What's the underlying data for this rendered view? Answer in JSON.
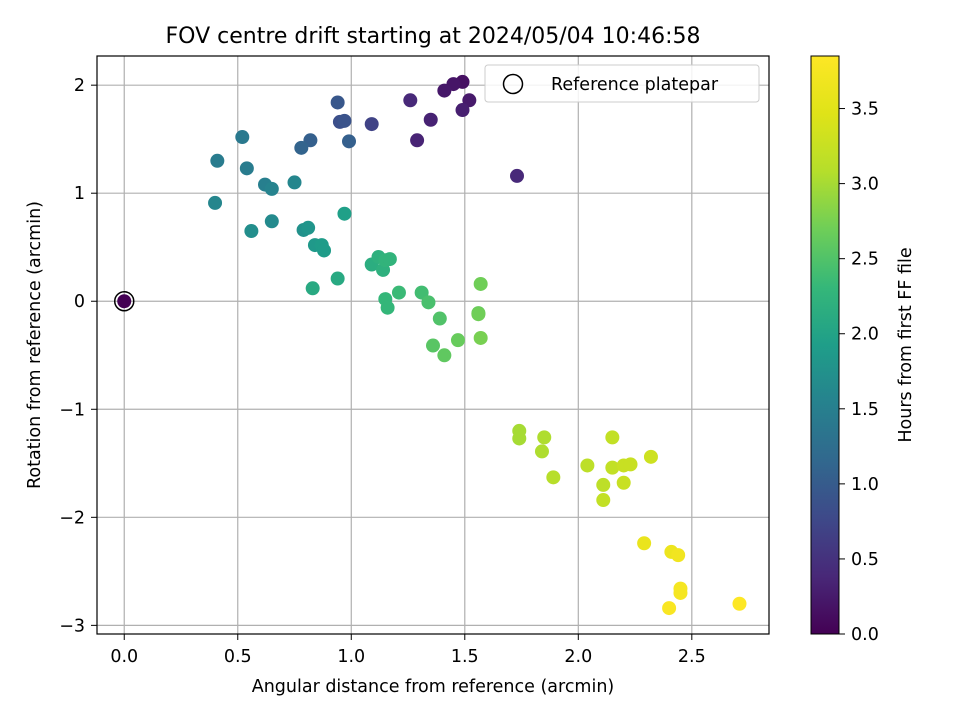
{
  "chart_data": {
    "type": "scatter",
    "title": "FOV centre drift starting at 2024/05/04 10:46:58",
    "xlabel": "Angular distance from reference (arcmin)",
    "ylabel": "Rotation from reference (arcmin)",
    "xlim": [
      -0.12,
      2.84
    ],
    "ylim": [
      -3.08,
      2.27
    ],
    "xticks": [
      0.0,
      0.5,
      1.0,
      1.5,
      2.0,
      2.5
    ],
    "xtick_labels": [
      "0.0",
      "0.5",
      "1.0",
      "1.5",
      "2.0",
      "2.5"
    ],
    "yticks": [
      -3,
      -2,
      -1,
      0,
      1,
      2
    ],
    "ytick_labels": [
      "−3",
      "−2",
      "−1",
      "0",
      "1",
      "2"
    ],
    "grid": true,
    "colorbar": {
      "label": "Hours from first FF file",
      "colormap": "viridis",
      "range": [
        0.0,
        3.85
      ],
      "ticks": [
        0.0,
        0.5,
        1.0,
        1.5,
        2.0,
        2.5,
        3.0,
        3.5
      ],
      "tick_labels": [
        "0.0",
        "0.5",
        "1.0",
        "1.5",
        "2.0",
        "2.5",
        "3.0",
        "3.5"
      ]
    },
    "legend": {
      "label": "Reference platepar",
      "placement": "upper right"
    },
    "reference_point": {
      "x": 0.0,
      "y": 0.0,
      "value": 0.0
    },
    "points": [
      {
        "x": 1.49,
        "y": 2.03,
        "v": 0.15
      },
      {
        "x": 1.45,
        "y": 2.01,
        "v": 0.2
      },
      {
        "x": 1.41,
        "y": 1.95,
        "v": 0.22
      },
      {
        "x": 1.52,
        "y": 1.86,
        "v": 0.25
      },
      {
        "x": 1.49,
        "y": 1.77,
        "v": 0.3
      },
      {
        "x": 1.35,
        "y": 1.68,
        "v": 0.33
      },
      {
        "x": 1.29,
        "y": 1.49,
        "v": 0.35
      },
      {
        "x": 1.26,
        "y": 1.86,
        "v": 0.4
      },
      {
        "x": 1.73,
        "y": 1.16,
        "v": 0.4
      },
      {
        "x": 1.09,
        "y": 1.64,
        "v": 0.7
      },
      {
        "x": 0.95,
        "y": 1.66,
        "v": 0.85
      },
      {
        "x": 0.97,
        "y": 1.67,
        "v": 0.9
      },
      {
        "x": 0.94,
        "y": 1.84,
        "v": 0.95
      },
      {
        "x": 0.99,
        "y": 1.48,
        "v": 1.05
      },
      {
        "x": 0.82,
        "y": 1.49,
        "v": 1.05
      },
      {
        "x": 0.78,
        "y": 1.42,
        "v": 1.1
      },
      {
        "x": 0.52,
        "y": 1.52,
        "v": 1.4
      },
      {
        "x": 0.41,
        "y": 1.3,
        "v": 1.45
      },
      {
        "x": 0.54,
        "y": 1.23,
        "v": 1.45
      },
      {
        "x": 0.62,
        "y": 1.08,
        "v": 1.5
      },
      {
        "x": 0.65,
        "y": 1.04,
        "v": 1.55
      },
      {
        "x": 0.75,
        "y": 1.1,
        "v": 1.6
      },
      {
        "x": 0.4,
        "y": 0.91,
        "v": 1.6
      },
      {
        "x": 0.65,
        "y": 0.74,
        "v": 1.65
      },
      {
        "x": 0.56,
        "y": 0.65,
        "v": 1.7
      },
      {
        "x": 0.79,
        "y": 0.66,
        "v": 1.75
      },
      {
        "x": 0.81,
        "y": 0.68,
        "v": 1.8
      },
      {
        "x": 0.84,
        "y": 0.52,
        "v": 1.85
      },
      {
        "x": 0.87,
        "y": 0.52,
        "v": 1.9
      },
      {
        "x": 0.88,
        "y": 0.47,
        "v": 1.9
      },
      {
        "x": 0.97,
        "y": 0.81,
        "v": 1.95
      },
      {
        "x": 0.94,
        "y": 0.21,
        "v": 2.1
      },
      {
        "x": 0.83,
        "y": 0.12,
        "v": 2.1
      },
      {
        "x": 1.09,
        "y": 0.34,
        "v": 2.15
      },
      {
        "x": 1.12,
        "y": 0.41,
        "v": 2.2
      },
      {
        "x": 1.14,
        "y": 0.29,
        "v": 2.2
      },
      {
        "x": 1.15,
        "y": 0.38,
        "v": 2.25
      },
      {
        "x": 1.17,
        "y": 0.39,
        "v": 2.25
      },
      {
        "x": 1.15,
        "y": 0.02,
        "v": 2.3
      },
      {
        "x": 1.16,
        "y": -0.06,
        "v": 2.3
      },
      {
        "x": 1.21,
        "y": 0.08,
        "v": 2.35
      },
      {
        "x": 1.31,
        "y": 0.08,
        "v": 2.4
      },
      {
        "x": 1.34,
        "y": -0.01,
        "v": 2.45
      },
      {
        "x": 1.39,
        "y": -0.16,
        "v": 2.5
      },
      {
        "x": 1.36,
        "y": -0.41,
        "v": 2.55
      },
      {
        "x": 1.41,
        "y": -0.5,
        "v": 2.6
      },
      {
        "x": 1.47,
        "y": -0.36,
        "v": 2.65
      },
      {
        "x": 1.56,
        "y": -0.11,
        "v": 2.65
      },
      {
        "x": 1.56,
        "y": -0.12,
        "v": 2.7
      },
      {
        "x": 1.57,
        "y": 0.16,
        "v": 2.7
      },
      {
        "x": 1.57,
        "y": -0.34,
        "v": 2.75
      },
      {
        "x": 1.74,
        "y": -1.2,
        "v": 3.0
      },
      {
        "x": 1.74,
        "y": -1.27,
        "v": 3.0
      },
      {
        "x": 1.85,
        "y": -1.26,
        "v": 3.05
      },
      {
        "x": 1.84,
        "y": -1.39,
        "v": 3.05
      },
      {
        "x": 1.89,
        "y": -1.63,
        "v": 3.1
      },
      {
        "x": 2.04,
        "y": -1.52,
        "v": 3.15
      },
      {
        "x": 2.11,
        "y": -1.7,
        "v": 3.15
      },
      {
        "x": 2.11,
        "y": -1.84,
        "v": 3.2
      },
      {
        "x": 2.15,
        "y": -1.26,
        "v": 3.2
      },
      {
        "x": 2.15,
        "y": -1.54,
        "v": 3.2
      },
      {
        "x": 2.2,
        "y": -1.68,
        "v": 3.25
      },
      {
        "x": 2.2,
        "y": -1.52,
        "v": 3.25
      },
      {
        "x": 2.23,
        "y": -1.51,
        "v": 3.25
      },
      {
        "x": 2.32,
        "y": -1.44,
        "v": 3.3
      },
      {
        "x": 2.29,
        "y": -2.24,
        "v": 3.6
      },
      {
        "x": 2.41,
        "y": -2.32,
        "v": 3.65
      },
      {
        "x": 2.44,
        "y": -2.35,
        "v": 3.7
      },
      {
        "x": 2.45,
        "y": -2.66,
        "v": 3.75
      },
      {
        "x": 2.45,
        "y": -2.7,
        "v": 3.75
      },
      {
        "x": 2.4,
        "y": -2.84,
        "v": 3.8
      },
      {
        "x": 2.71,
        "y": -2.8,
        "v": 3.85
      }
    ]
  }
}
